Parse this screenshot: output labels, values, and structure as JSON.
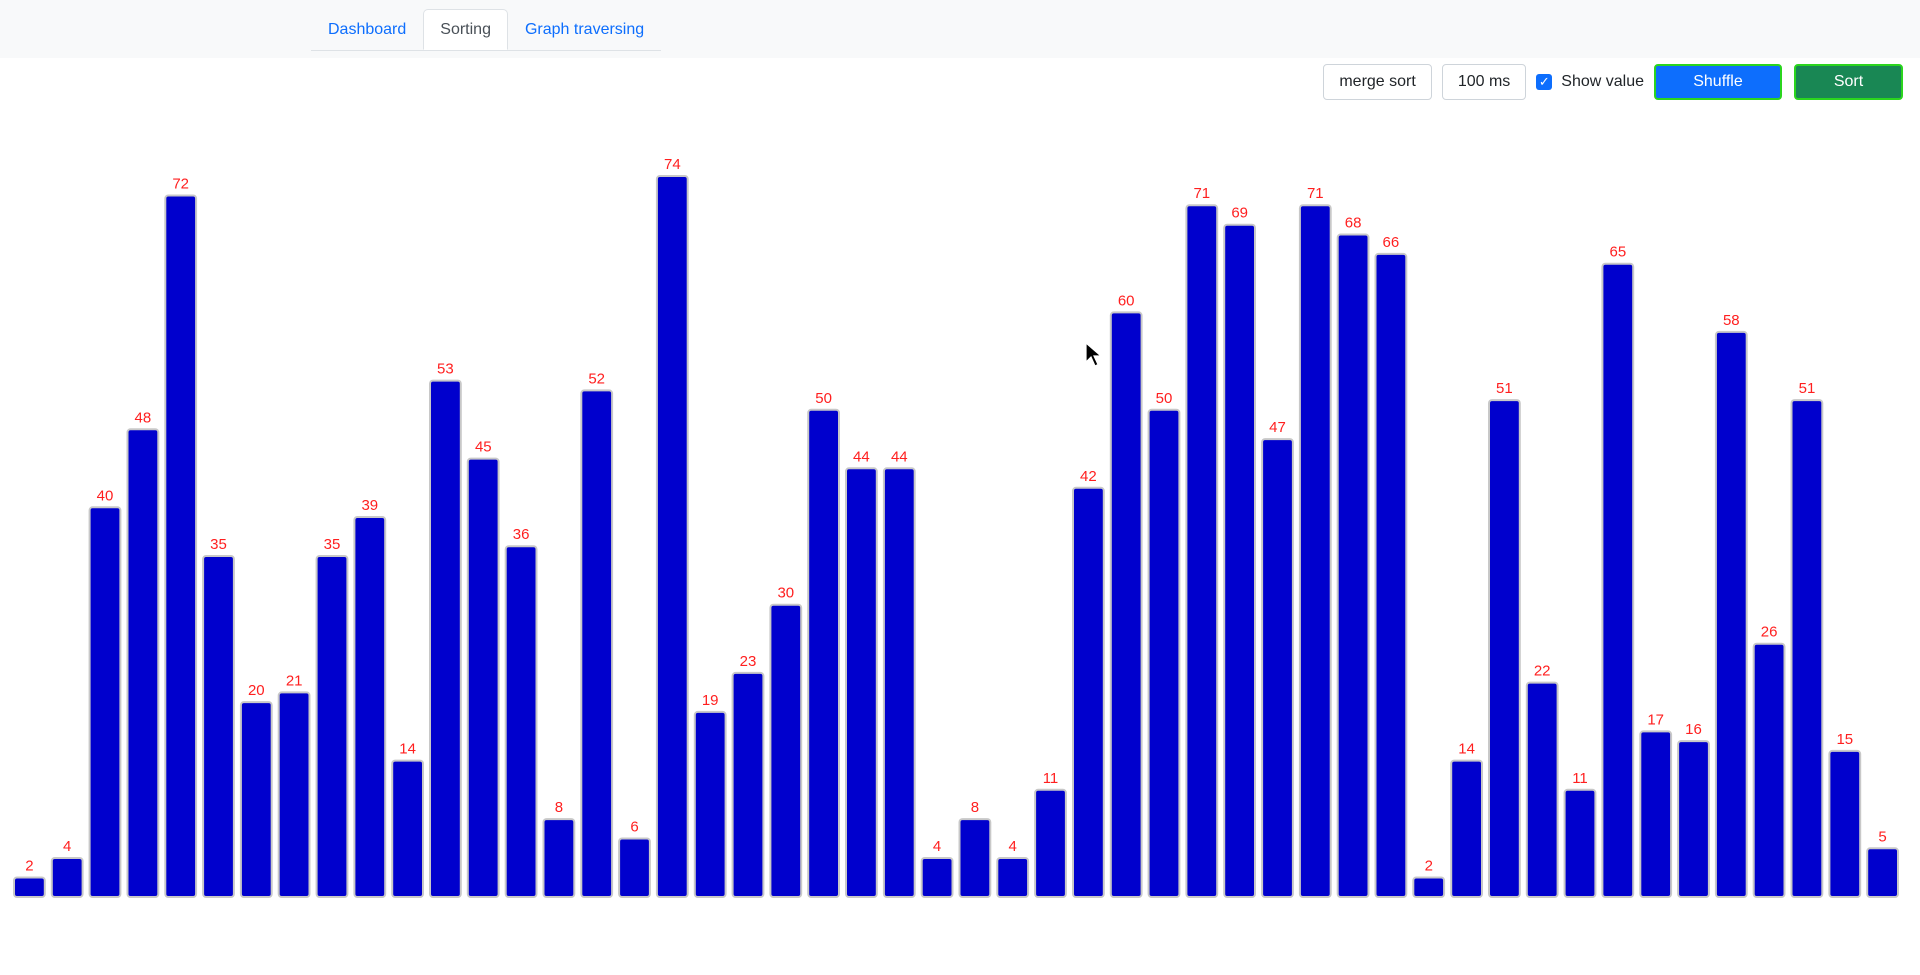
{
  "nav": {
    "tabs": [
      {
        "label": "Dashboard",
        "active": false
      },
      {
        "label": "Sorting",
        "active": true
      },
      {
        "label": "Graph traversing",
        "active": false
      }
    ]
  },
  "controls": {
    "algorithm_value": "merge sort",
    "delay_value": "100 ms",
    "show_value_checked": true,
    "show_value_label": "Show value",
    "shuffle_label": "Shuffle",
    "sort_label": "Sort"
  },
  "colors": {
    "bar_fill": "#0000cd",
    "bar_border": "#c8c8c8",
    "value_label": "#ff1f1f",
    "primary": "#0d6efd",
    "success": "#198754",
    "button_outline": "#2bd51e"
  },
  "chart_data": {
    "type": "bar",
    "values": [
      2,
      4,
      40,
      48,
      72,
      35,
      20,
      21,
      35,
      39,
      14,
      53,
      45,
      36,
      8,
      52,
      6,
      74,
      19,
      23,
      30,
      50,
      44,
      44,
      4,
      8,
      4,
      11,
      42,
      60,
      50,
      71,
      69,
      47,
      71,
      68,
      66,
      2,
      14,
      51,
      22,
      11,
      65,
      17,
      16,
      58,
      26,
      51,
      15,
      5
    ],
    "ylim": [
      0,
      74
    ],
    "show_values": true
  }
}
